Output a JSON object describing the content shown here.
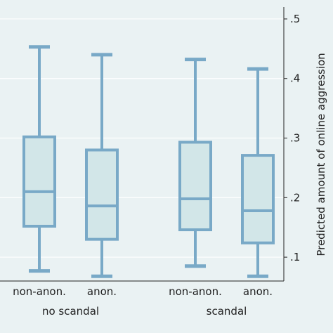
{
  "chart_data": {
    "type": "box",
    "title": "",
    "xlabel": "",
    "ylabel": "Predicted amount of online aggression",
    "ylim": [
      0.06,
      0.52
    ],
    "yticks": [
      0.1,
      0.2,
      0.3,
      0.4,
      0.5
    ],
    "ytick_labels": [
      ".1",
      ".2",
      ".3",
      ".4",
      ".5"
    ],
    "y_axis_position": "right",
    "grid": true,
    "colors": {
      "box_fill": "#d2e6e8",
      "box_stroke": "#79a9c7",
      "grid": "#ffffff",
      "background": "#eaf2f3"
    },
    "groups": [
      {
        "name": "no scandal",
        "boxes": [
          0,
          1
        ]
      },
      {
        "name": "scandal",
        "boxes": [
          2,
          3
        ]
      }
    ],
    "boxes": [
      {
        "label": "non-anon.",
        "whisker_low": 0.077,
        "q1": 0.152,
        "median": 0.21,
        "q3": 0.302,
        "whisker_high": 0.453
      },
      {
        "label": "anon.",
        "whisker_low": 0.068,
        "q1": 0.13,
        "median": 0.186,
        "q3": 0.28,
        "whisker_high": 0.44
      },
      {
        "label": "non-anon.",
        "whisker_low": 0.085,
        "q1": 0.146,
        "median": 0.198,
        "q3": 0.293,
        "whisker_high": 0.432
      },
      {
        "label": "anon.",
        "whisker_low": 0.068,
        "q1": 0.124,
        "median": 0.178,
        "q3": 0.271,
        "whisker_high": 0.416
      }
    ]
  }
}
